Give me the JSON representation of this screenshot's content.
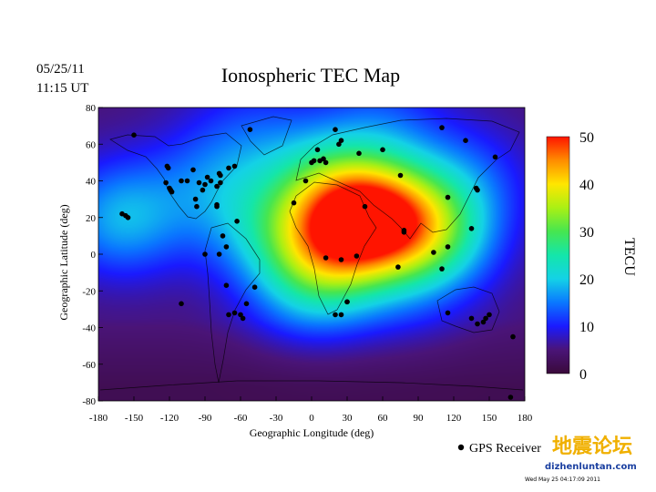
{
  "header": {
    "date": "05/25/11",
    "time": "11:15 UT",
    "title": "Ionospheric TEC Map"
  },
  "legend": {
    "marker_label": "GPS Receiver"
  },
  "watermark": {
    "chinese": "地震论坛",
    "url": "dizhenluntan.com",
    "stamp": "Wed May 25 04:17:09 2011"
  },
  "chart_data": {
    "type": "heatmap",
    "title": "Ionospheric TEC Map",
    "xlabel": "Geographic Longitude (deg)",
    "ylabel": "Geographic Latitude (deg)",
    "xlim": [
      -180,
      180
    ],
    "ylim": [
      -80,
      80
    ],
    "x_ticks": [
      -180,
      -150,
      -120,
      -90,
      -60,
      -30,
      0,
      30,
      60,
      90,
      120,
      150,
      180
    ],
    "y_ticks": [
      80,
      60,
      40,
      20,
      0,
      -20,
      -40,
      -60,
      -80
    ],
    "colorbar": {
      "label": "TECU",
      "min": 0,
      "max": 50,
      "ticks": [
        50,
        40,
        30,
        20,
        10,
        0
      ]
    },
    "tec_peaks": [
      {
        "lon": 55,
        "lat": 22,
        "value": 34
      },
      {
        "lon": 20,
        "lat": 10,
        "value": 27
      },
      {
        "lon": 100,
        "lat": 10,
        "value": 24
      },
      {
        "lon": 10,
        "lat": 40,
        "value": 18
      },
      {
        "lon": 0,
        "lat": -15,
        "value": 18
      },
      {
        "lon": -160,
        "lat": 20,
        "value": 18
      },
      {
        "lon": -45,
        "lat": 15,
        "value": 14
      },
      {
        "lon": 130,
        "lat": 40,
        "value": 12
      },
      {
        "lon": -85,
        "lat": 40,
        "value": 12
      },
      {
        "lon": -50,
        "lat": 68,
        "value": 10
      },
      {
        "lon": 60,
        "lat": 72,
        "value": 11
      },
      {
        "lon": 75,
        "lat": -22,
        "value": 8
      }
    ],
    "background_tec": 5,
    "receivers": [
      [
        -150,
        65
      ],
      [
        -160,
        22
      ],
      [
        -155,
        20
      ],
      [
        -122,
        48
      ],
      [
        -121,
        47
      ],
      [
        -123,
        39
      ],
      [
        -120,
        36
      ],
      [
        -118,
        34
      ],
      [
        -119,
        35
      ],
      [
        -110,
        40
      ],
      [
        -105,
        40
      ],
      [
        -100,
        46
      ],
      [
        -95,
        39
      ],
      [
        -98,
        30
      ],
      [
        -97,
        26
      ],
      [
        -90,
        38
      ],
      [
        -88,
        42
      ],
      [
        -92,
        35
      ],
      [
        -85,
        40
      ],
      [
        -80,
        37
      ],
      [
        -78,
        44
      ],
      [
        -77,
        43
      ],
      [
        -77,
        39
      ],
      [
        -70,
        47
      ],
      [
        -65,
        48
      ],
      [
        -52,
        68
      ],
      [
        -63,
        18
      ],
      [
        -80,
        27
      ],
      [
        -80,
        26
      ],
      [
        -90,
        0
      ],
      [
        -78,
        0
      ],
      [
        -72,
        4
      ],
      [
        -75,
        10
      ],
      [
        -110,
        -27
      ],
      [
        -72,
        -17
      ],
      [
        -70,
        -33
      ],
      [
        -65,
        -32
      ],
      [
        -60,
        -33
      ],
      [
        -58,
        -35
      ],
      [
        -55,
        -27
      ],
      [
        -48,
        -18
      ],
      [
        -15,
        28
      ],
      [
        -5,
        40
      ],
      [
        0,
        50
      ],
      [
        2,
        51
      ],
      [
        5,
        57
      ],
      [
        7,
        51
      ],
      [
        10,
        52
      ],
      [
        12,
        50
      ],
      [
        20,
        68
      ],
      [
        25,
        62
      ],
      [
        23,
        60
      ],
      [
        40,
        55
      ],
      [
        60,
        57
      ],
      [
        75,
        43
      ],
      [
        110,
        69
      ],
      [
        130,
        62
      ],
      [
        155,
        53
      ],
      [
        115,
        31
      ],
      [
        139,
        36
      ],
      [
        140,
        35
      ],
      [
        135,
        14
      ],
      [
        115,
        4
      ],
      [
        103,
        1
      ],
      [
        110,
        -8
      ],
      [
        78,
        13
      ],
      [
        78,
        12
      ],
      [
        45,
        26
      ],
      [
        38,
        -1
      ],
      [
        25,
        -3
      ],
      [
        12,
        -2
      ],
      [
        73,
        -7
      ],
      [
        30,
        -26
      ],
      [
        25,
        -33
      ],
      [
        20,
        -33
      ],
      [
        115,
        -32
      ],
      [
        135,
        -35
      ],
      [
        140,
        -38
      ],
      [
        145,
        -37
      ],
      [
        147,
        -35
      ],
      [
        150,
        -33
      ],
      [
        170,
        -45
      ],
      [
        168,
        -78
      ],
      [
        30,
        -26
      ],
      [
        -157,
        21
      ]
    ]
  }
}
